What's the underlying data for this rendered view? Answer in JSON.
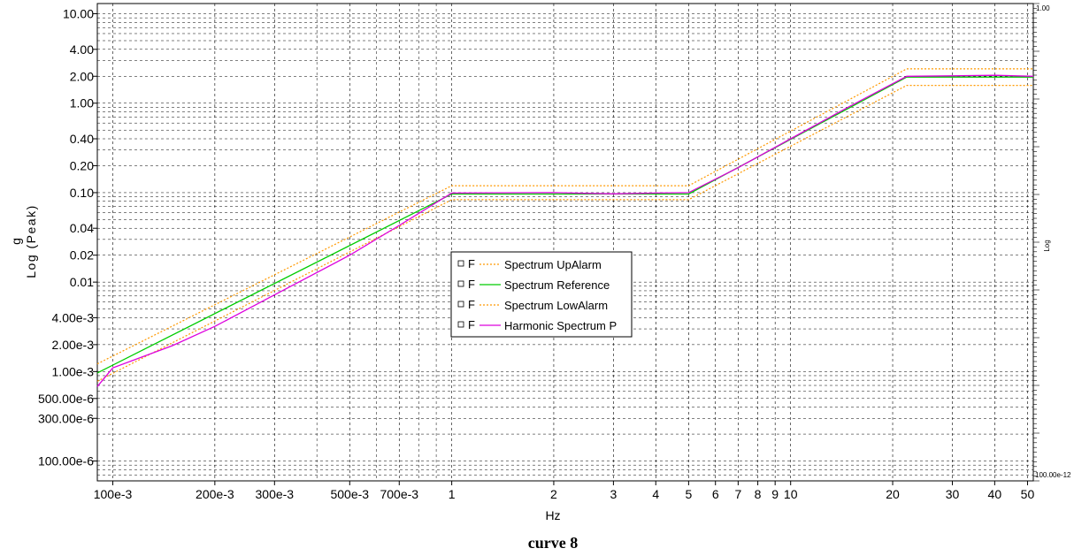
{
  "chart_data": {
    "type": "line",
    "caption": "curve 8",
    "xlabel": "Hz",
    "ylabel_unit": "g",
    "ylabel_scale": "Log (Peak)",
    "x_scale": "log",
    "y_scale": "log",
    "xlim": [
      0.09,
      52
    ],
    "ylim": [
      6e-05,
      13
    ],
    "grid": true,
    "legend_position": "center",
    "x_ticks": [
      {
        "value": 0.1,
        "label": "100e-3"
      },
      {
        "value": 0.2,
        "label": "200e-3"
      },
      {
        "value": 0.3,
        "label": "300e-3"
      },
      {
        "value": 0.5,
        "label": "500e-3"
      },
      {
        "value": 0.7,
        "label": "700e-3"
      },
      {
        "value": 1,
        "label": "1"
      },
      {
        "value": 2,
        "label": "2"
      },
      {
        "value": 3,
        "label": "3"
      },
      {
        "value": 4,
        "label": "4"
      },
      {
        "value": 5,
        "label": "5"
      },
      {
        "value": 6,
        "label": "6"
      },
      {
        "value": 7,
        "label": "7"
      },
      {
        "value": 8,
        "label": "8"
      },
      {
        "value": 9,
        "label": "9"
      },
      {
        "value": 10,
        "label": "10"
      },
      {
        "value": 20,
        "label": "20"
      },
      {
        "value": 30,
        "label": "30"
      },
      {
        "value": 40,
        "label": "40"
      },
      {
        "value": 50,
        "label": "50"
      }
    ],
    "y_ticks": [
      {
        "value": 10,
        "label": "10.00"
      },
      {
        "value": 4,
        "label": "4.00"
      },
      {
        "value": 2,
        "label": "2.00"
      },
      {
        "value": 1,
        "label": "1.00"
      },
      {
        "value": 0.4,
        "label": "0.40"
      },
      {
        "value": 0.2,
        "label": "0.20"
      },
      {
        "value": 0.1,
        "label": "0.10"
      },
      {
        "value": 0.04,
        "label": "0.04"
      },
      {
        "value": 0.02,
        "label": "0.02"
      },
      {
        "value": 0.01,
        "label": "0.01"
      },
      {
        "value": 0.004,
        "label": "4.00e-3"
      },
      {
        "value": 0.002,
        "label": "2.00e-3"
      },
      {
        "value": 0.001,
        "label": "1.00e-3"
      },
      {
        "value": 0.0005,
        "label": "500.00e-6"
      },
      {
        "value": 0.0003,
        "label": "300.00e-6"
      },
      {
        "value": 0.0001,
        "label": "100.00e-6"
      }
    ],
    "right_axis": {
      "label": "Log",
      "top_label": "1.00",
      "bottom_label": "100.00e-12"
    },
    "series": [
      {
        "name": "Spectrum UpAlarm",
        "marker": "F",
        "color": "#ff9900",
        "style": "dotted",
        "x": [
          0.09,
          1,
          5,
          22,
          52
        ],
        "y": [
          0.00122,
          0.1196,
          0.1196,
          2.42,
          2.42
        ]
      },
      {
        "name": "Spectrum Reference",
        "marker": "F",
        "color": "#00cc00",
        "style": "solid",
        "x": [
          0.09,
          1,
          5,
          22,
          52
        ],
        "y": [
          0.000965,
          0.0965,
          0.0965,
          1.96,
          1.96
        ]
      },
      {
        "name": "Spectrum LowAlarm",
        "marker": "F",
        "color": "#ff9900",
        "style": "dotted",
        "x": [
          0.09,
          1,
          5,
          22,
          52
        ],
        "y": [
          0.00078,
          0.0835,
          0.0835,
          1.58,
          1.58
        ]
      },
      {
        "name": "Harmonic Spectrum P",
        "marker": "F",
        "color": "#dd00dd",
        "style": "solid",
        "x": [
          0.09,
          0.1,
          0.15,
          0.2,
          0.3,
          0.5,
          0.7,
          1,
          2,
          3,
          4,
          5,
          7,
          10,
          15,
          20,
          22,
          30,
          40,
          52
        ],
        "y": [
          0.00068,
          0.0011,
          0.00195,
          0.0032,
          0.0072,
          0.02,
          0.043,
          0.099,
          0.1,
          0.097,
          0.099,
          0.1,
          0.19,
          0.4,
          0.93,
          1.65,
          2.0,
          2.02,
          2.05,
          2.0
        ]
      }
    ]
  }
}
